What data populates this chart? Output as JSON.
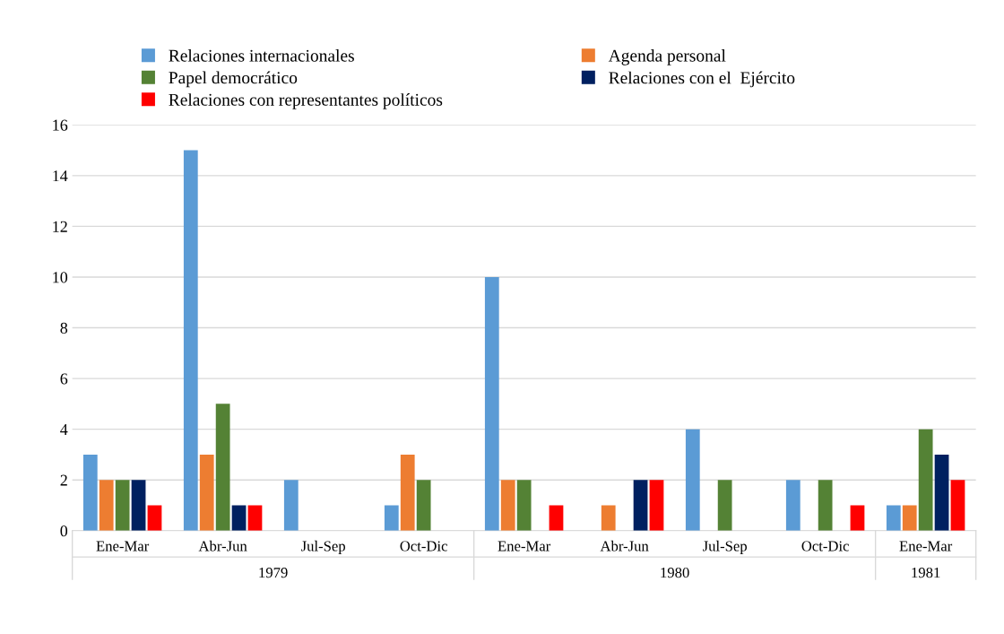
{
  "chart_data": {
    "type": "bar",
    "categories": [
      "Ene-Mar",
      "Abr-Jun",
      "Jul-Sep",
      "Oct-Dic",
      "Ene-Mar",
      "Abr-Jun",
      "Jul-Sep",
      "Oct-Dic",
      "Ene-Mar"
    ],
    "series": [
      {
        "name": "Relaciones internacionales",
        "color": "#5b9bd5",
        "values": [
          3,
          15,
          2,
          1,
          10,
          0,
          4,
          2,
          1
        ]
      },
      {
        "name": "Agenda personal",
        "color": "#ed7d31",
        "values": [
          2,
          3,
          0,
          3,
          2,
          1,
          0,
          0,
          1
        ]
      },
      {
        "name": "Papel democrático",
        "color": "#548235",
        "values": [
          2,
          5,
          0,
          2,
          2,
          0,
          2,
          2,
          4
        ]
      },
      {
        "name": "Relaciones con el  Ejército",
        "color": "#002060",
        "values": [
          2,
          1,
          0,
          0,
          0,
          2,
          0,
          0,
          3
        ]
      },
      {
        "name": "Relaciones con representantes políticos",
        "color": "#ff0000",
        "values": [
          1,
          1,
          0,
          0,
          1,
          2,
          0,
          1,
          2
        ]
      }
    ],
    "annotations": [
      "1979",
      "1980",
      "1981"
    ],
    "ylim": [
      0,
      16
    ],
    "yticks": [
      0,
      2,
      4,
      6,
      8,
      10,
      12,
      14,
      16
    ],
    "grid": "y",
    "legend": "top"
  }
}
